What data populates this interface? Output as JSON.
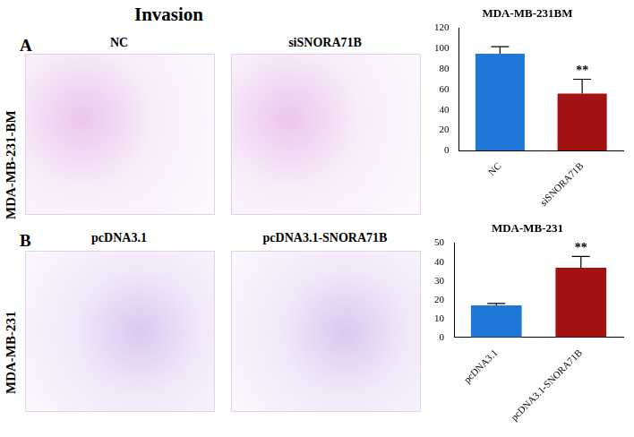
{
  "figure": {
    "title": "Invasion",
    "panels": [
      {
        "letter": "A",
        "cell_line": "MDA-MB-231-BM",
        "images": [
          "NC",
          "siSNORA71B"
        ]
      },
      {
        "letter": "B",
        "cell_line": "MDA-MB-231",
        "images": [
          "pcDNA3.1",
          "pcDNA3.1-SNORA71B"
        ]
      }
    ]
  },
  "chart_data": [
    {
      "type": "bar",
      "title": "MDA-MB-231BM",
      "categories": [
        "NC",
        "siSNORA71B"
      ],
      "values": [
        95,
        56
      ],
      "errors": [
        7,
        14
      ],
      "colors": [
        "#1f78d8",
        "#a31212"
      ],
      "ylim": [
        0,
        120
      ],
      "yticks": [
        0,
        20,
        40,
        60,
        80,
        100,
        120
      ],
      "grid": false,
      "annotations": [
        {
          "category": "siSNORA71B",
          "text": "**"
        }
      ]
    },
    {
      "type": "bar",
      "title": "MDA-MB-231",
      "categories": [
        "pcDNA3.1",
        "pcDNA3.1-SNORA71B"
      ],
      "values": [
        17,
        37
      ],
      "errors": [
        1,
        6
      ],
      "colors": [
        "#1f78d8",
        "#a31212"
      ],
      "ylim": [
        0,
        50
      ],
      "yticks": [
        0,
        10,
        20,
        30,
        40,
        50
      ],
      "grid": false,
      "annotations": [
        {
          "category": "pcDNA3.1-SNORA71B",
          "text": "**"
        }
      ]
    }
  ]
}
